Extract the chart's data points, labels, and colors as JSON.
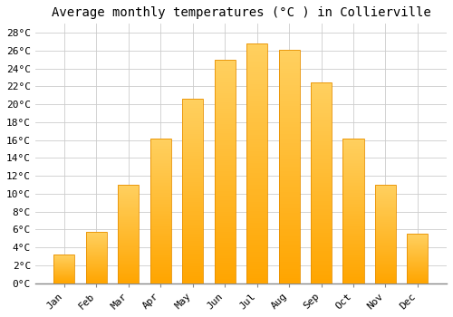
{
  "title": "Average monthly temperatures (°C ) in Collierville",
  "months": [
    "Jan",
    "Feb",
    "Mar",
    "Apr",
    "May",
    "Jun",
    "Jul",
    "Aug",
    "Sep",
    "Oct",
    "Nov",
    "Dec"
  ],
  "temperatures": [
    3.2,
    5.7,
    11.0,
    16.2,
    20.6,
    25.0,
    26.8,
    26.1,
    22.4,
    16.2,
    11.0,
    5.5
  ],
  "bar_color_bottom": "#FFA500",
  "bar_color_top": "#FFD060",
  "bar_edge_color": "#E89000",
  "ylim": [
    0,
    29
  ],
  "yticks": [
    0,
    2,
    4,
    6,
    8,
    10,
    12,
    14,
    16,
    18,
    20,
    22,
    24,
    26,
    28
  ],
  "background_color": "#ffffff",
  "grid_color": "#cccccc",
  "title_fontsize": 10,
  "tick_fontsize": 8,
  "font_family": "monospace",
  "bar_width": 0.65
}
